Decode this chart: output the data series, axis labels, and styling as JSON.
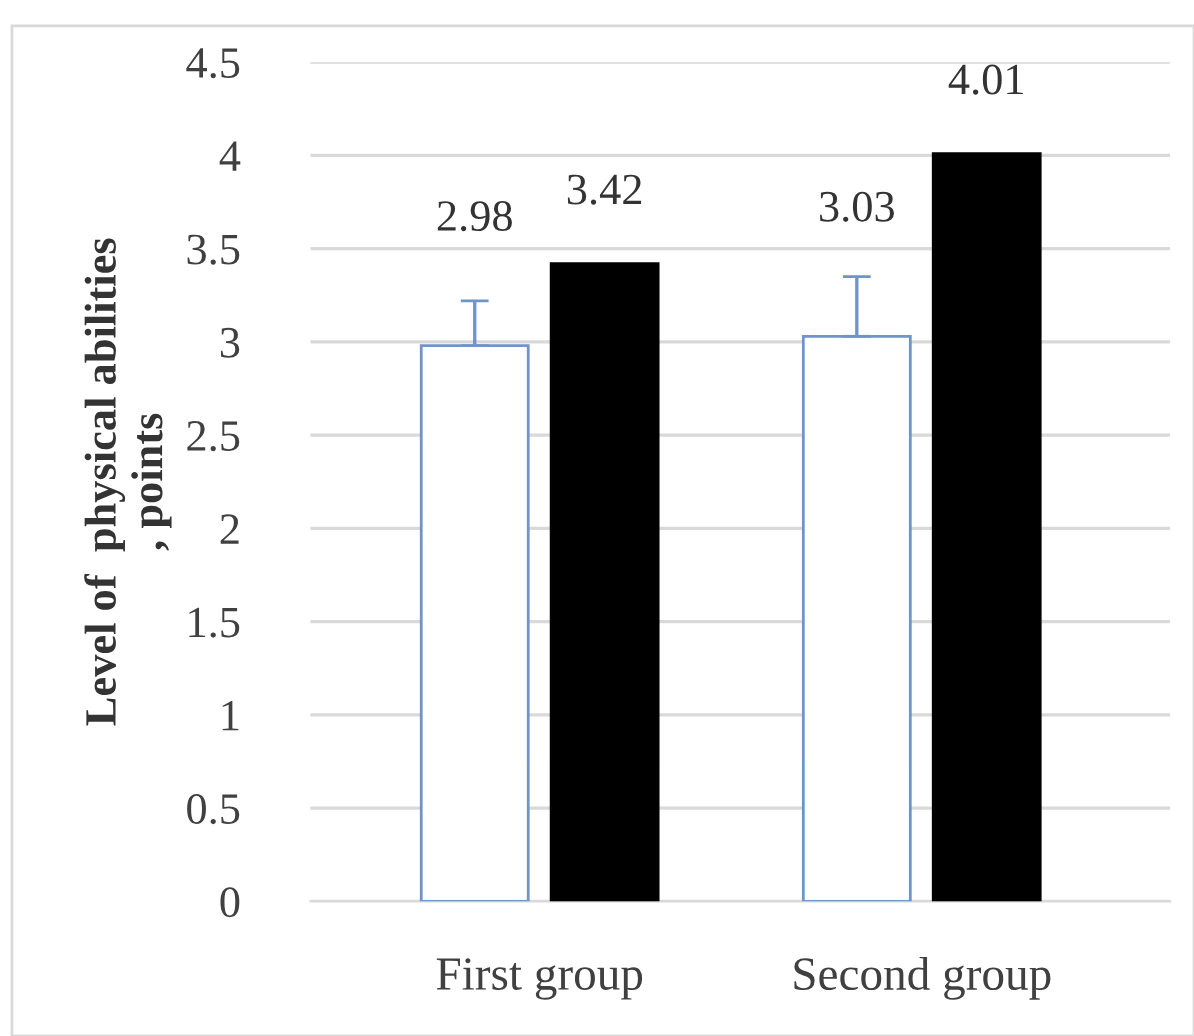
{
  "chart_data": {
    "type": "bar",
    "ylabel": "Level of  physical abilities\n, points",
    "categories": [
      "First group",
      "Second group"
    ],
    "series": [
      {
        "color": "#ffffff",
        "values": [
          2.98,
          3.03
        ],
        "errors": [
          [
            2.98,
            3.22
          ],
          [
            3.03,
            3.35
          ]
        ]
      },
      {
        "color": "#000000",
        "values": [
          3.42,
          4.01
        ]
      }
    ],
    "ylim": [
      0,
      4.5
    ],
    "yticks": [
      0,
      0.5,
      1,
      1.5,
      2,
      2.5,
      3,
      3.5,
      4,
      4.5
    ],
    "grid": "y",
    "data_labels": true,
    "legend": false
  }
}
